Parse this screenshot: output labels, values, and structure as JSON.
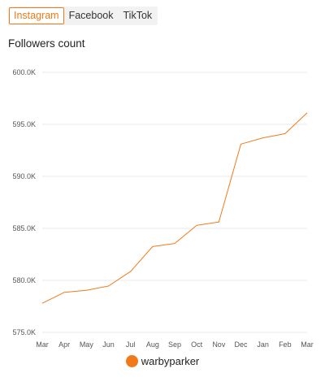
{
  "tabs": [
    {
      "label": "Instagram",
      "active": true
    },
    {
      "label": "Facebook",
      "active": false
    },
    {
      "label": "TikTok",
      "active": false
    }
  ],
  "accent_color": "#f07a1a",
  "chart_data": {
    "type": "line",
    "title": "Followers count",
    "xlabel": "",
    "ylabel": "",
    "categories": [
      "Mar",
      "Apr",
      "May",
      "Jun",
      "Jul",
      "Aug",
      "Sep",
      "Oct",
      "Nov",
      "Dec",
      "Jan",
      "Feb",
      "Mar"
    ],
    "y_ticks": [
      575000,
      580000,
      585000,
      590000,
      595000,
      600000
    ],
    "y_tick_labels": [
      "575.0K",
      "580.0K",
      "585.0K",
      "590.0K",
      "595.0K",
      "600.0K"
    ],
    "ylim": [
      575000,
      600000
    ],
    "grid": true,
    "legend_position": "bottom-center",
    "series": [
      {
        "name": "warbyparker",
        "color": "#f07a1a",
        "values": [
          577800,
          578850,
          579050,
          579450,
          580850,
          583250,
          583550,
          585300,
          585600,
          593100,
          593700,
          594100,
          596100
        ]
      }
    ]
  }
}
